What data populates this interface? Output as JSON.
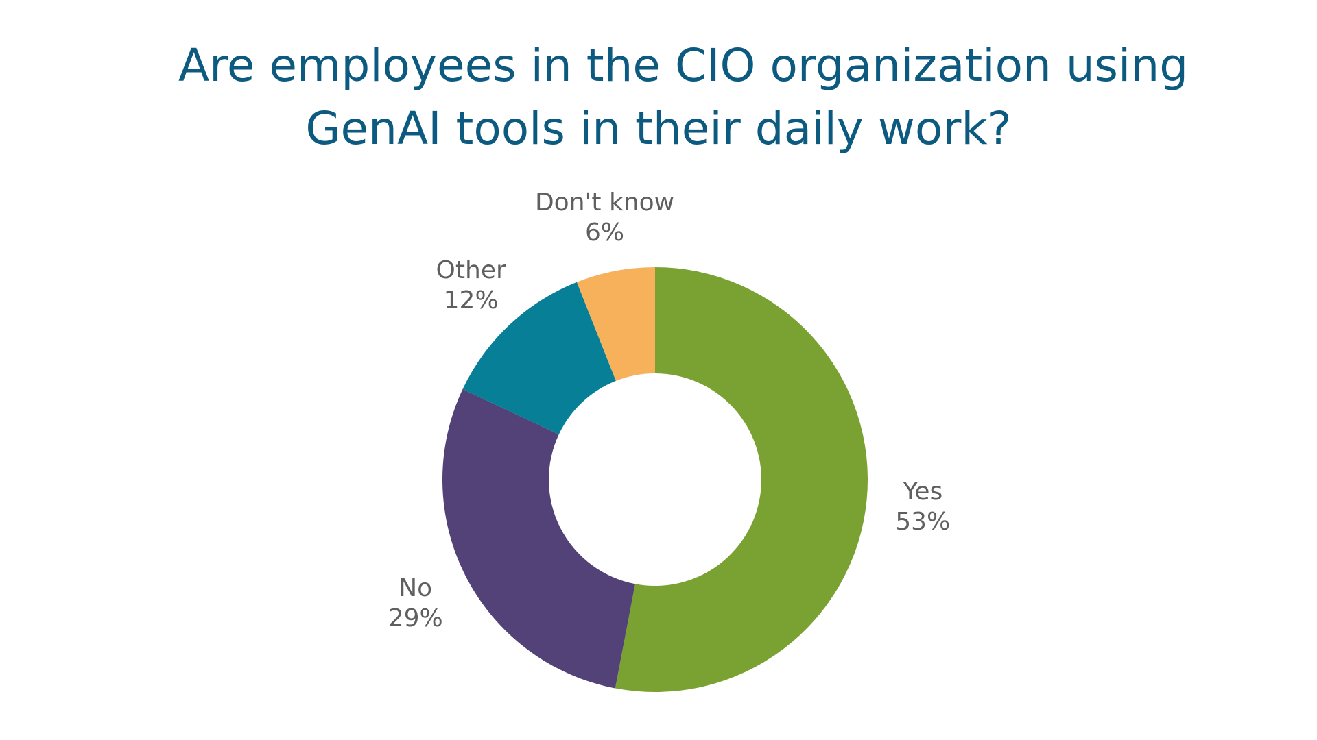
{
  "chart_data": {
    "type": "pie",
    "donut": true,
    "title_lines": [
      "Are employees in the CIO organization using",
      "GenAI tools in their daily work?"
    ],
    "slices": [
      {
        "label": "Yes",
        "value": 53,
        "value_label": "53%",
        "color": "#79a232"
      },
      {
        "label": "No",
        "value": 29,
        "value_label": "29%",
        "color": "#534277"
      },
      {
        "label": "Other",
        "value": 12,
        "value_label": "12%",
        "color": "#077f97"
      },
      {
        "label": "Don't know",
        "value": 6,
        "value_label": "6%",
        "color": "#f7b15a"
      }
    ],
    "start_angle": "12 o'clock",
    "direction": "clockwise",
    "legend": "none",
    "data_labels": "outside"
  }
}
